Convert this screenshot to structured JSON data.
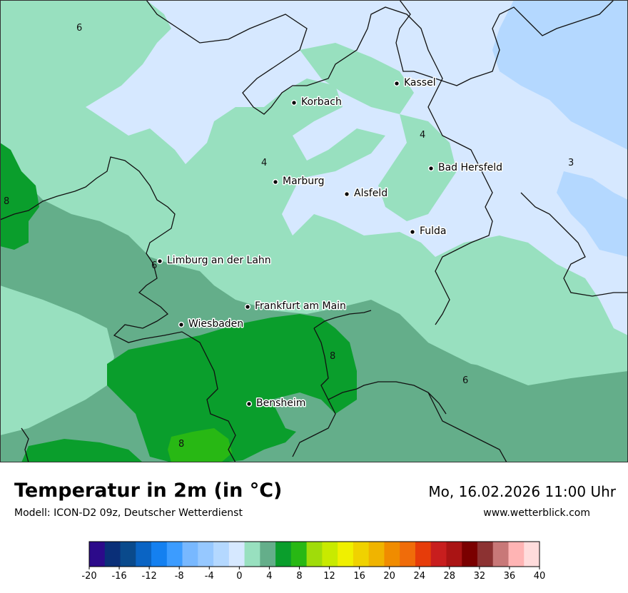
{
  "map": {
    "cities": [
      {
        "id": "kassel",
        "name": "Kassel"
      },
      {
        "id": "korbach",
        "name": "Korbach"
      },
      {
        "id": "bad-hersfeld",
        "name": "Bad Hersfeld"
      },
      {
        "id": "marburg",
        "name": "Marburg"
      },
      {
        "id": "alsfeld",
        "name": "Alsfeld"
      },
      {
        "id": "fulda",
        "name": "Fulda"
      },
      {
        "id": "limburg",
        "name": "Limburg an der Lahn"
      },
      {
        "id": "frankfurt",
        "name": "Frankfurt am Main"
      },
      {
        "id": "wiesbaden",
        "name": "Wiesbaden"
      },
      {
        "id": "bensheim",
        "name": "Bensheim"
      }
    ],
    "isolines": [
      "6",
      "4",
      "3",
      "4",
      "8",
      "6",
      "8",
      "6",
      "8"
    ]
  },
  "footer": {
    "title": "Temperatur in 2m (in °C)",
    "model": "Modell: ICON-D2 09z, Deutscher Wetterdienst",
    "datetime": "Mo, 16.02.2026 11:00 Uhr",
    "website": "www.wetterblick.com"
  },
  "legend": {
    "ticks": [
      "-20",
      "-16",
      "-12",
      "-8",
      "-4",
      "0",
      "4",
      "8",
      "12",
      "16",
      "20",
      "24",
      "28",
      "32",
      "36",
      "40"
    ],
    "colors": [
      "#2c0a8a",
      "#0a2f78",
      "#0a4a8c",
      "#0a64c4",
      "#1480f0",
      "#3c9cff",
      "#78b8ff",
      "#96c8ff",
      "#b4d8ff",
      "#d6e8ff",
      "#98e0bf",
      "#64ae8a",
      "#0a9e2c",
      "#28b814",
      "#a0dc0a",
      "#c8ea00",
      "#f0f000",
      "#f0d200",
      "#f0b400",
      "#f08c00",
      "#f06c0a",
      "#e63c0a",
      "#c81e1e",
      "#aa1414",
      "#7a0000",
      "#8c3232",
      "#c87878",
      "#ffb4b4",
      "#ffdcdc"
    ]
  }
}
